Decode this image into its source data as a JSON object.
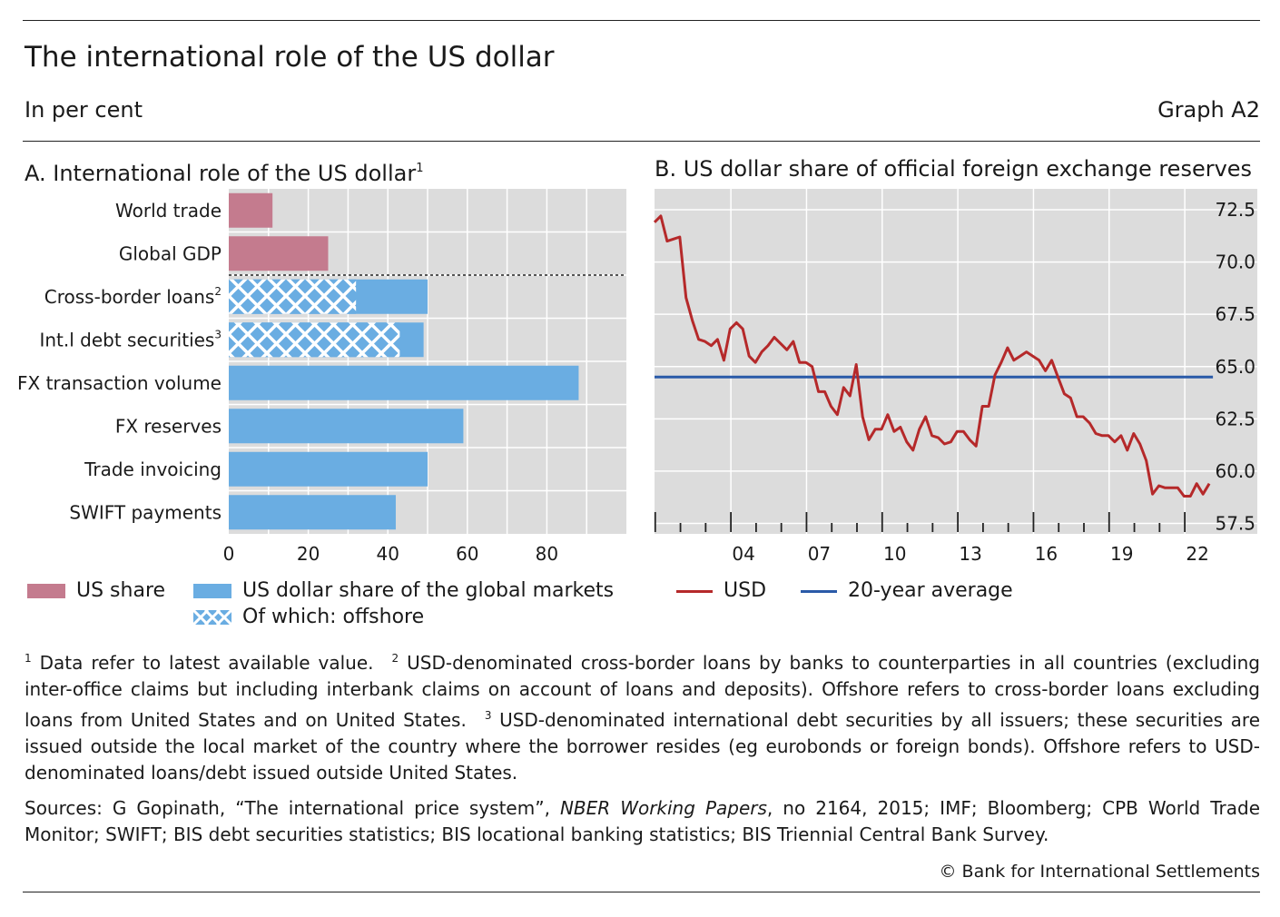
{
  "header": {
    "title": "The international role of the US dollar",
    "subtitle": "In per cent",
    "graph_id": "Graph A2"
  },
  "panel_a": {
    "title": "A. International role of the US dollar",
    "title_sup": "1"
  },
  "panel_b": {
    "title": "B. US dollar share of official foreign exchange reserves"
  },
  "legend_a": {
    "us_share": "US share",
    "global_markets": "US dollar share of the global markets",
    "offshore": "Of which: offshore"
  },
  "legend_b": {
    "usd": "USD",
    "avg": "20-year average"
  },
  "colors": {
    "us_share": "#c47b8e",
    "global_markets": "#6aade2",
    "offshore_hatch": "#2f6fbf",
    "usd_line": "#b5292a",
    "avg_line": "#2a5aa8",
    "plot_bg": "#dcdcdc"
  },
  "chart_data": [
    {
      "type": "bar",
      "orientation": "horizontal",
      "title": "A. International role of the US dollar",
      "categories": [
        "World trade",
        "Global GDP",
        "Cross-border loans",
        "Int.l debt securities",
        "FX transaction volume",
        "FX reserves",
        "Trade invoicing",
        "SWIFT payments"
      ],
      "category_superscripts": [
        "",
        "",
        "2",
        "3",
        "",
        "",
        "",
        ""
      ],
      "series": [
        {
          "name": "US share",
          "values": [
            11,
            25,
            null,
            null,
            null,
            null,
            null,
            null
          ]
        },
        {
          "name": "US dollar share of the global markets",
          "values": [
            null,
            null,
            50,
            49,
            88,
            59,
            50,
            42
          ]
        },
        {
          "name": "Of which: offshore",
          "values": [
            null,
            null,
            32,
            43,
            null,
            null,
            null,
            null
          ]
        }
      ],
      "xlim": [
        0,
        100
      ],
      "xticks": [
        0,
        20,
        40,
        60,
        80
      ],
      "grid": true,
      "separator_after_category": "Global GDP"
    },
    {
      "type": "line",
      "title": "B. US dollar share of official foreign exchange reserves",
      "x_tick_labels": [
        "04",
        "07",
        "10",
        "13",
        "16",
        "19",
        "22"
      ],
      "x_tick_years": [
        2004,
        2007,
        2010,
        2013,
        2016,
        2019,
        2022
      ],
      "ylim": [
        57,
        73.5
      ],
      "yticks": [
        57.5,
        60.0,
        62.5,
        65.0,
        67.5,
        70.0,
        72.5
      ],
      "ytick_labels": [
        "57.5",
        "60.0",
        "62.5",
        "65.0",
        "67.5",
        "70.0",
        "72.5"
      ],
      "y_axis_side": "right",
      "grid": true,
      "series": [
        {
          "name": "USD",
          "x": [
            2000.0,
            2000.25,
            2000.5,
            2000.75,
            2001.0,
            2001.25,
            2001.5,
            2001.75,
            2002.0,
            2002.25,
            2002.5,
            2002.75,
            2003.0,
            2003.25,
            2003.5,
            2003.75,
            2004.0,
            2004.25,
            2004.5,
            2004.75,
            2005.0,
            2005.25,
            2005.5,
            2005.75,
            2006.0,
            2006.25,
            2006.5,
            2006.75,
            2007.0,
            2007.25,
            2007.5,
            2007.75,
            2008.0,
            2008.25,
            2008.5,
            2008.75,
            2009.0,
            2009.25,
            2009.5,
            2009.75,
            2010.0,
            2010.25,
            2010.5,
            2010.75,
            2011.0,
            2011.25,
            2011.5,
            2011.75,
            2012.0,
            2012.25,
            2012.5,
            2012.75,
            2013.0,
            2013.25,
            2013.5,
            2013.75,
            2014.0,
            2014.25,
            2014.5,
            2014.75,
            2015.0,
            2015.25,
            2015.5,
            2015.75,
            2016.0,
            2016.25,
            2016.5,
            2016.75,
            2017.0,
            2017.25,
            2017.5,
            2017.75,
            2018.0,
            2018.25,
            2018.5,
            2018.75,
            2019.0,
            2019.25,
            2019.5,
            2019.75,
            2020.0,
            2020.25,
            2020.5,
            2020.75,
            2021.0,
            2021.25,
            2021.5,
            2021.75,
            2022.0
          ],
          "values": [
            71.9,
            72.2,
            71.0,
            71.1,
            71.2,
            68.3,
            67.2,
            66.3,
            66.2,
            66.0,
            66.3,
            65.3,
            66.8,
            67.1,
            66.8,
            65.5,
            65.2,
            65.7,
            66.0,
            66.4,
            66.1,
            65.8,
            66.2,
            65.2,
            65.2,
            65.0,
            63.8,
            63.8,
            63.1,
            62.7,
            64.0,
            63.6,
            65.1,
            62.6,
            61.5,
            62.0,
            62.0,
            62.7,
            61.9,
            62.1,
            61.4,
            61.0,
            62.0,
            62.6,
            61.7,
            61.6,
            61.3,
            61.4,
            61.9,
            61.9,
            61.5,
            61.2,
            63.1,
            63.1,
            64.6,
            65.2,
            65.9,
            65.3,
            65.5,
            65.7,
            65.5,
            65.3,
            64.8,
            65.3,
            64.5,
            63.7,
            63.5,
            62.6,
            62.6,
            62.3,
            61.8,
            61.7,
            61.7,
            61.4,
            61.7,
            61.0,
            61.8,
            61.3,
            60.5,
            58.9,
            59.3,
            59.2,
            59.2,
            59.2,
            58.8,
            58.8,
            59.4,
            58.9,
            59.4
          ]
        },
        {
          "name": "20-year average",
          "x": [
            2000.0,
            2022.0
          ],
          "values": [
            64.5,
            64.5
          ]
        }
      ]
    }
  ],
  "footnotes": {
    "n1_mark": "1",
    "n1": "Data refer to latest available value.",
    "n2_mark": "2",
    "n2": "USD-denominated cross-border loans by banks to counterparties in all countries (excluding inter-office claims but including interbank claims on account of loans and deposits). Offshore refers to cross-border loans excluding loans from United States and on United States.",
    "n3_mark": "3",
    "n3": "USD-denominated international debt securities by all issuers; these securities are issued outside the local market of the country where the borrower resides (eg eurobonds or foreign bonds). Offshore refers to USD-denominated loans/debt issued outside United States."
  },
  "sources": {
    "prefix": "Sources: G Gopinath, “The international price system”, ",
    "journal": "NBER Working Papers",
    "rest": ", no 2164, 2015; IMF; Bloomberg; CPB World Trade Monitor; SWIFT; BIS debt securities statistics; BIS locational banking statistics; BIS Triennial Central Bank Survey."
  },
  "credit": "© Bank for International Settlements"
}
